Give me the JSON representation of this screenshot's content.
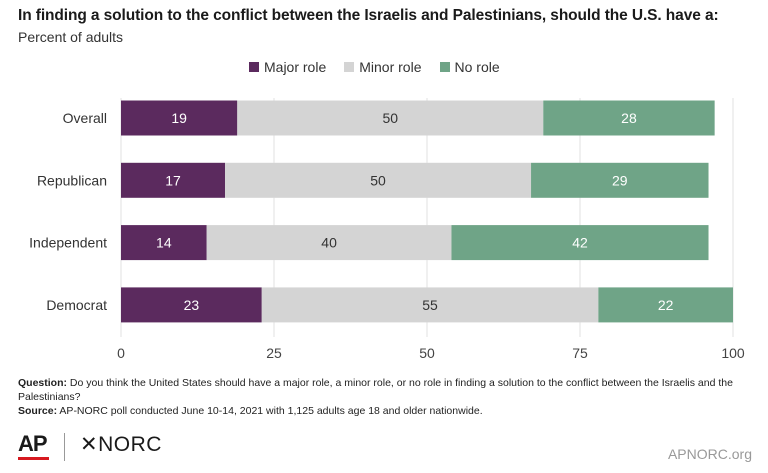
{
  "title": "In finding a solution to the conflict between the Israelis and Palestinians, should the U.S. have a:",
  "subtitle": "Percent of adults",
  "footnote": {
    "question_label": "Question:",
    "question_text": " Do you think the United States should have a major role, a minor role, or no role in finding a solution to the conflict between the Israelis and the Palestinians?",
    "source_label": "Source:",
    "source_text": " AP-NORC poll conducted June 10-14, 2021 with 1,125 adults age 18 and older nationwide."
  },
  "branding": {
    "ap_logo": "AP",
    "norc_logo": "✕NORC",
    "site": "APNORC.org"
  },
  "chart_data": {
    "type": "bar",
    "orientation": "horizontal",
    "stacked": true,
    "categories": [
      "Overall",
      "Republican",
      "Independent",
      "Democrat"
    ],
    "series": [
      {
        "name": "Major role",
        "color": "#5b2a5e",
        "values": [
          19,
          17,
          14,
          23
        ]
      },
      {
        "name": "Minor role",
        "color": "#d4d4d4",
        "values": [
          50,
          50,
          40,
          55
        ]
      },
      {
        "name": "No role",
        "color": "#6fa487",
        "values": [
          28,
          29,
          42,
          22
        ]
      }
    ],
    "xlim": [
      0,
      100
    ],
    "xticks": [
      0,
      25,
      50,
      75,
      100
    ],
    "label_colors": {
      "Major role": "#ffffff",
      "Minor role": "#333333",
      "No role": "#ffffff"
    },
    "legend_position": "top-center",
    "grid": true
  }
}
